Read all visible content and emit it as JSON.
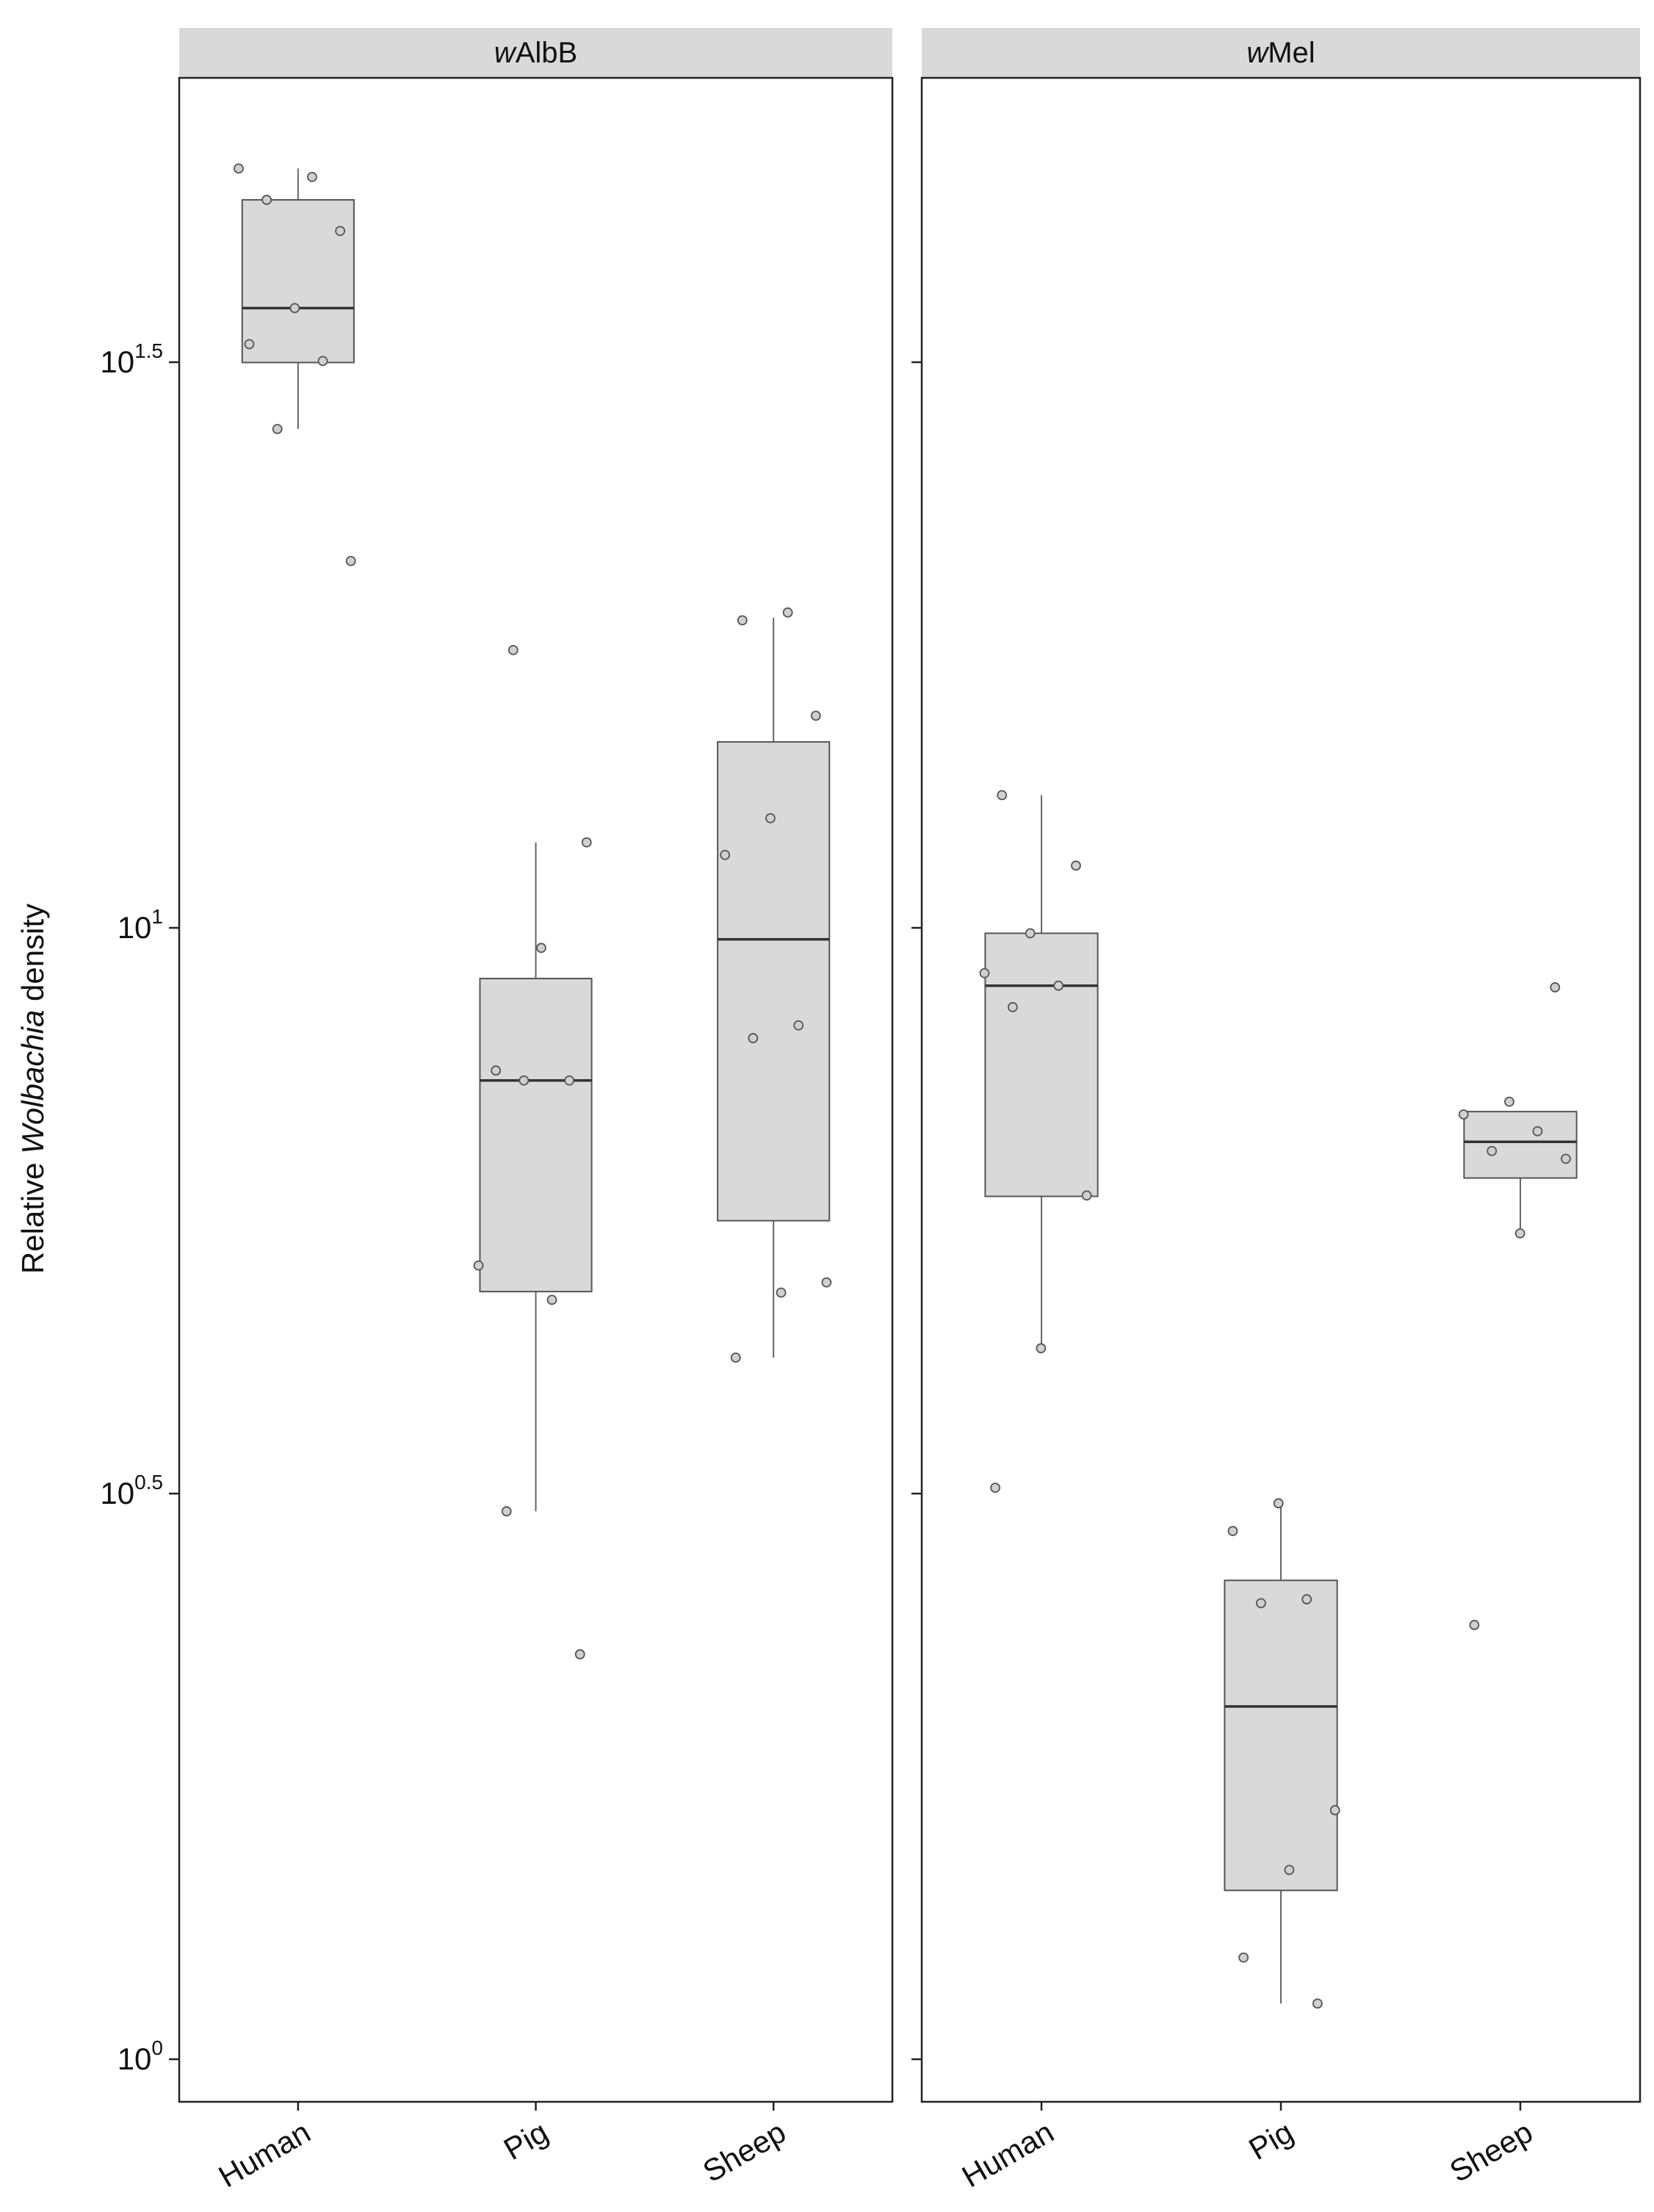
{
  "chart_data": {
    "type": "box",
    "log_y": true,
    "ylim": [
      0.917,
      56.4
    ],
    "yticks": [
      {
        "value": 1,
        "label": "10",
        "exponent": "0"
      },
      {
        "value": 3.162,
        "label": "10",
        "exponent": "0.5"
      },
      {
        "value": 10,
        "label": "10",
        "exponent": "1"
      },
      {
        "value": 31.62,
        "label": "10",
        "exponent": "1.5"
      }
    ],
    "y_label": [
      {
        "text": "Relative "
      },
      {
        "text": "Wolbachia",
        "italic": true
      },
      {
        "text": " density"
      }
    ],
    "box_color": "#d9d9d9",
    "facets": [
      {
        "title_italic": "w",
        "title": "AlbB",
        "categories": [
          "Human",
          "Pig",
          "Sheep"
        ],
        "groups": [
          {
            "whisker_low": 27.6,
            "q1": 31.6,
            "median": 35.3,
            "q3": 44.0,
            "whisker_high": 46.9,
            "points": [
              46.9,
              46.1,
              44.0,
              41.3,
              35.3,
              32.8,
              31.7,
              27.6,
              21.1
            ]
          },
          {
            "whisker_low": 3.05,
            "q1": 4.77,
            "median": 7.33,
            "q3": 9.02,
            "whisker_high": 11.9,
            "points": [
              17.6,
              11.9,
              9.6,
              7.48,
              7.33,
              7.33,
              5.03,
              4.69,
              3.05,
              2.28
            ]
          },
          {
            "whisker_low": 4.17,
            "q1": 5.51,
            "median": 9.77,
            "q3": 14.6,
            "whisker_high": 18.8,
            "points": [
              19.0,
              18.7,
              15.4,
              12.5,
              11.6,
              8.2,
              7.99,
              4.86,
              4.76,
              4.17
            ]
          }
        ]
      },
      {
        "title_italic": "w",
        "title": "Mel",
        "categories": [
          "Human",
          "Pig",
          "Sheep"
        ],
        "groups": [
          {
            "whisker_low": 4.25,
            "q1": 5.79,
            "median": 8.89,
            "q3": 9.89,
            "whisker_high": 13.1,
            "points": [
              13.1,
              11.35,
              9.89,
              9.12,
              8.89,
              8.51,
              5.8,
              4.25,
              3.2
            ]
          },
          {
            "whisker_low": 1.12,
            "q1": 1.41,
            "median": 2.05,
            "q3": 2.65,
            "whisker_high": 3.1,
            "points": [
              3.1,
              2.93,
              2.55,
              2.53,
              1.66,
              1.47,
              1.23,
              1.12
            ]
          },
          {
            "whisker_low": 5.37,
            "q1": 6.01,
            "median": 6.47,
            "q3": 6.88,
            "whisker_high": 6.88,
            "points": [
              8.86,
              7.02,
              6.84,
              6.61,
              6.35,
              6.25,
              5.37,
              2.42
            ]
          }
        ]
      }
    ]
  }
}
